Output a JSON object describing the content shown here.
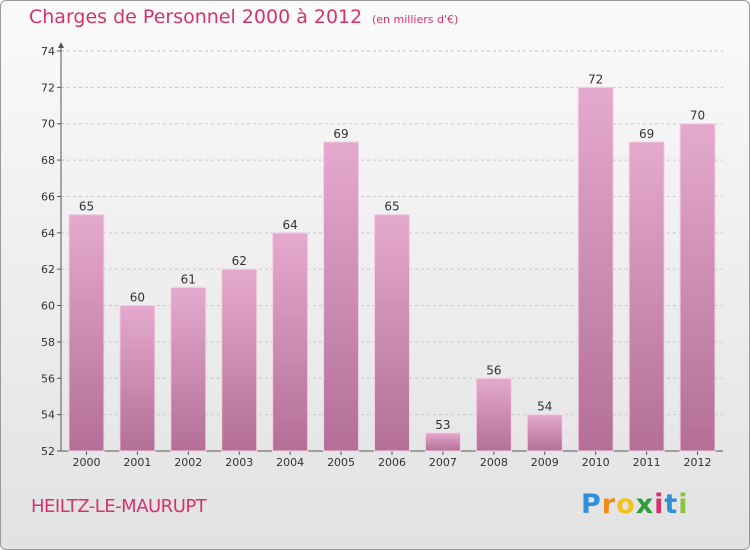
{
  "title": "Charges de Personnel 2000 à 2012",
  "subtitle": "(en milliers d'€)",
  "commune": "HEILTZ-LE-MAURUPT",
  "logo": {
    "letters": [
      "P",
      "r",
      "o",
      "x",
      "i",
      "t",
      "i"
    ]
  },
  "colors": {
    "bar_top": "#e5a9cf",
    "bar_bottom": "#b36f98",
    "accent": "#d6336c",
    "grid": "#c8c8c8"
  },
  "chart_data": {
    "type": "bar",
    "title": "Charges de Personnel 2000 à 2012",
    "subtitle": "(en milliers d'€)",
    "categories": [
      "2000",
      "2001",
      "2002",
      "2003",
      "2004",
      "2005",
      "2006",
      "2007",
      "2008",
      "2009",
      "2010",
      "2011",
      "2012"
    ],
    "values": [
      65,
      60,
      61,
      62,
      64,
      69,
      65,
      53,
      56,
      54,
      72,
      69,
      70
    ],
    "ylim": [
      52,
      74
    ],
    "yticks": [
      52,
      54,
      56,
      58,
      60,
      62,
      64,
      66,
      68,
      70,
      72,
      74
    ],
    "grid": "horizontal dashed",
    "legend": "none",
    "data_labels": true
  }
}
